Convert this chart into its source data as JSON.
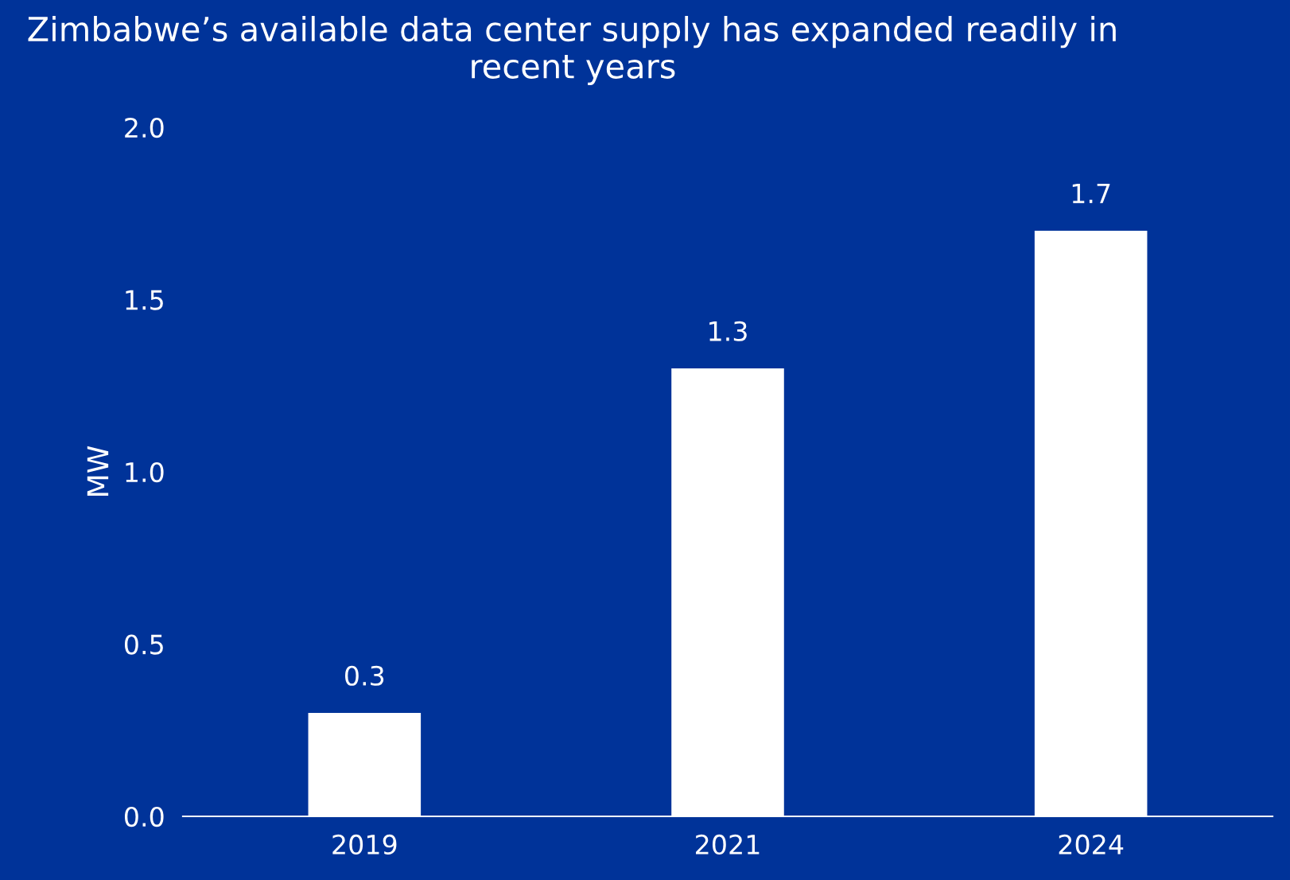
{
  "chart_data": {
    "type": "bar",
    "title": "Zimbabwe’s available data center supply has expanded readily in recent years",
    "ylabel": "MW",
    "categories": [
      "2019",
      "2021",
      "2024"
    ],
    "values": [
      0.3,
      1.3,
      1.7
    ],
    "color": "#ffffff",
    "ylim": [
      0,
      2.0
    ],
    "yticks": [
      {
        "value": 0,
        "label": "0.0"
      },
      {
        "value": 0.5,
        "label": "0.5"
      },
      {
        "value": 1.0,
        "label": "1.0"
      },
      {
        "value": 1.5,
        "label": "1.5"
      },
      {
        "value": 2.0,
        "label": "2.0"
      }
    ],
    "data_labels": true,
    "grid": false,
    "legend": false
  }
}
